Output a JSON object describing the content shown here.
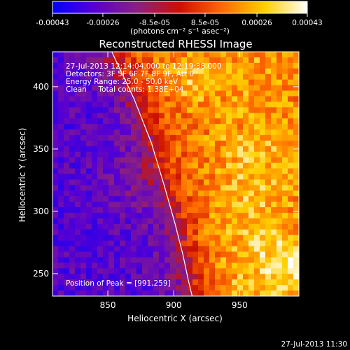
{
  "chart_data": {
    "type": "heatmap",
    "title": "Reconstructed RHESSI Image",
    "xlabel": "Heliocentric X (arcsec)",
    "ylabel": "Heliocentric Y (arcsec)",
    "xlim": [
      808,
      995
    ],
    "ylim": [
      232,
      428
    ],
    "xticks": [
      850,
      900,
      950
    ],
    "yticks": [
      250,
      300,
      350,
      400
    ],
    "info_lines": [
      "27-Jul-2013 12:14:04.000 to 12:19:38.000",
      "Detectors: 3F 5F 6F 7F 8F 9F, Att 0",
      "Energy Range: 25.0 - 50.0 keV",
      "Clean     Total counts: 1.38E+04"
    ],
    "peak_text": "Position of Peak = [991,259]",
    "peak": [
      991,
      259
    ],
    "timestamp": "27-Jul-2013 11:30",
    "colorbar": {
      "min": -0.00043,
      "max": 0.00043,
      "tick_labels": [
        "-0.00043",
        "-0.00026",
        "-8.5e-05",
        "8.5e-05",
        "0.00026",
        "0.00043"
      ],
      "unit_label": "(photons cm⁻² s⁻¹ asec⁻²)",
      "colors": [
        "#0000ff",
        "#5a00d0",
        "#8a2080",
        "#cc1000",
        "#ff6a00",
        "#ffd000",
        "#ffffff"
      ]
    },
    "limb": {
      "x": [
        853,
        870,
        883,
        893,
        901,
        907,
        911,
        914
      ],
      "y": [
        428,
        390,
        355,
        320,
        290,
        265,
        245,
        232
      ]
    },
    "grid": false
  }
}
